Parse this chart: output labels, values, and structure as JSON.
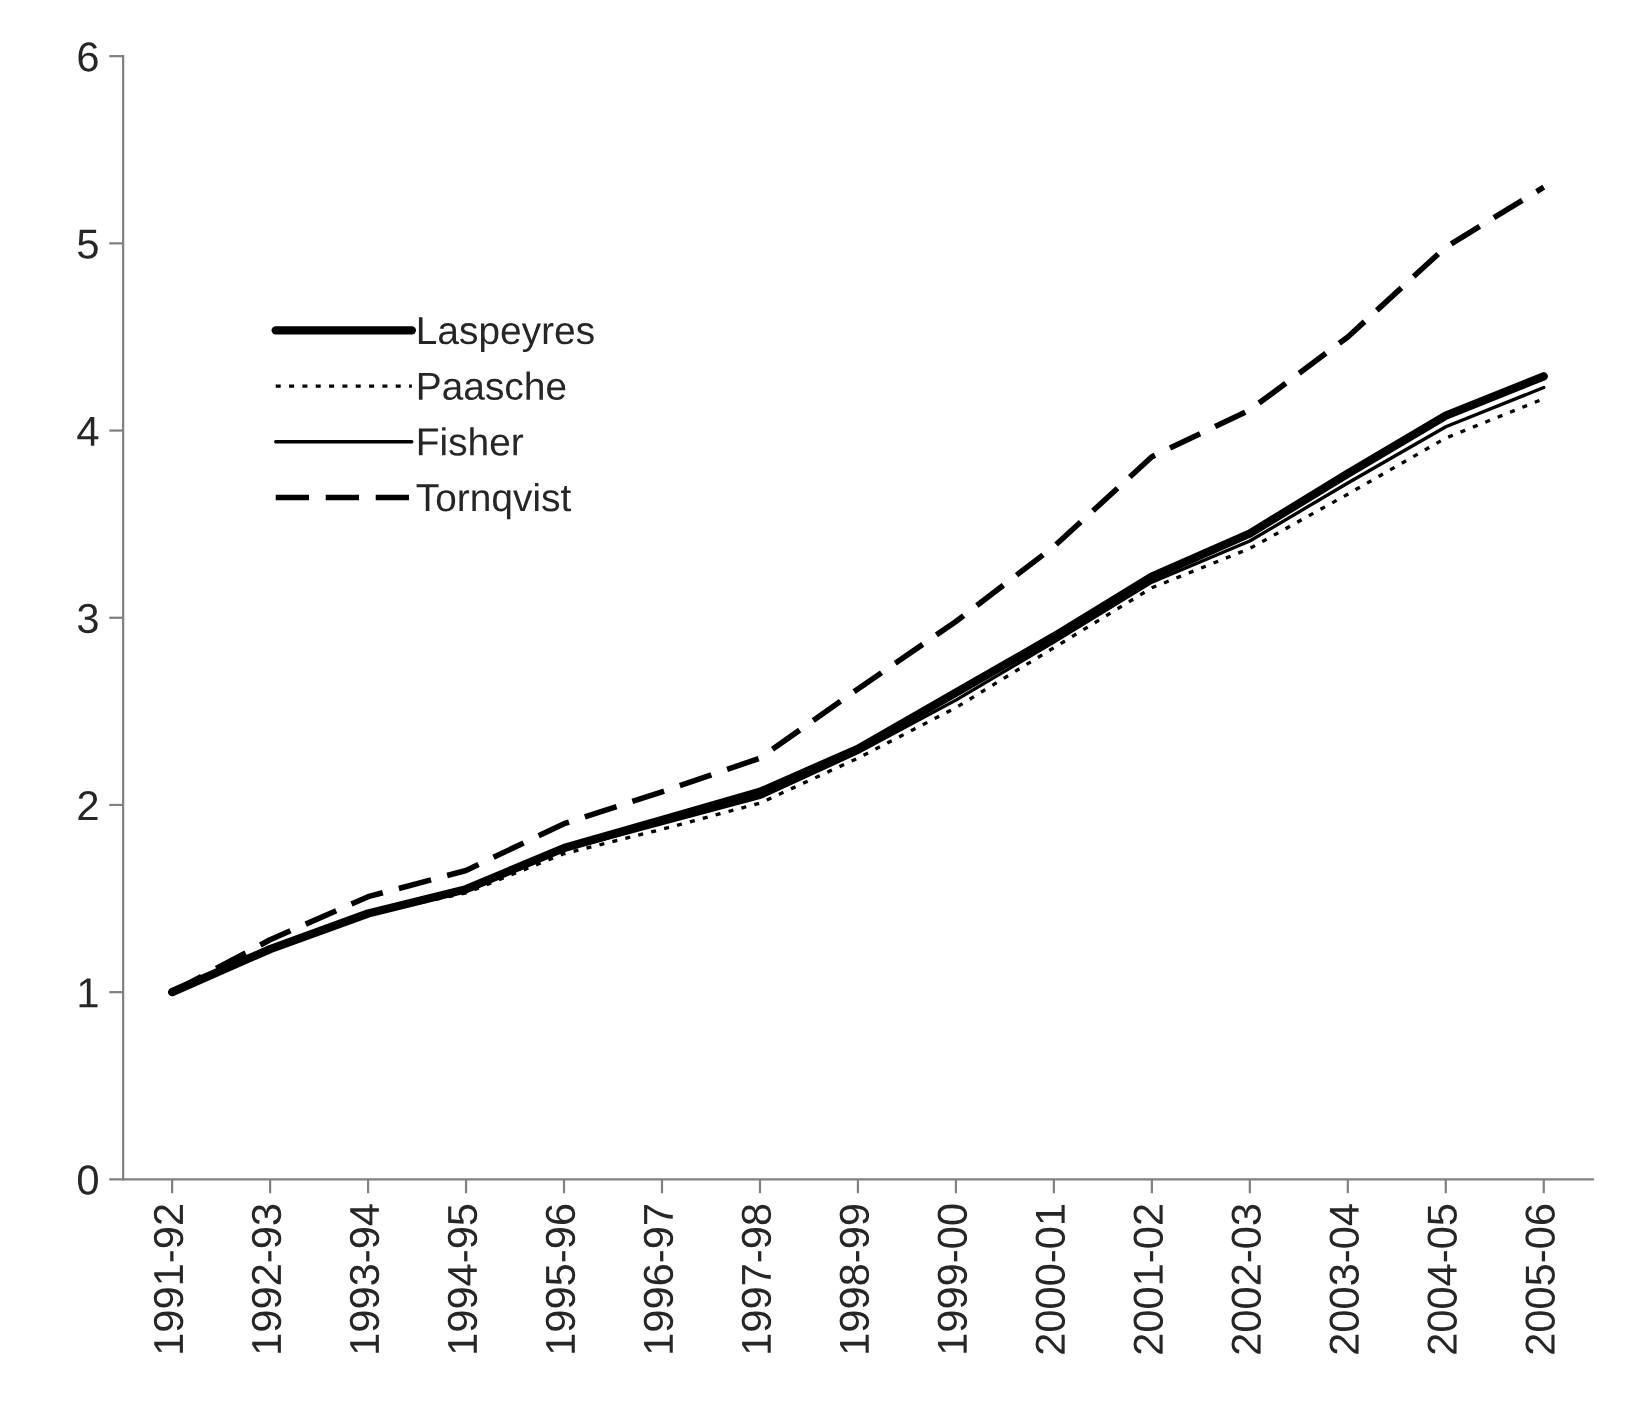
{
  "chart_data": {
    "type": "line",
    "categories": [
      "1991-92",
      "1992-93",
      "1993-94",
      "1994-95",
      "1995-96",
      "1996-97",
      "1997-98",
      "1998-99",
      "1999-00",
      "2000-01",
      "2001-02",
      "2002-03",
      "2003-04",
      "2004-05",
      "2005-06"
    ],
    "series": [
      {
        "name": "Laspeyres",
        "color": "#000000",
        "line_style": "solid",
        "values": [
          1.0,
          1.23,
          1.42,
          1.55,
          1.77,
          1.92,
          2.07,
          2.3,
          2.6,
          2.9,
          3.22,
          3.45,
          3.77,
          4.08,
          4.29
        ]
      },
      {
        "name": "Paasche",
        "color": "#000000",
        "line_style": "dotted",
        "values": [
          1.0,
          1.22,
          1.42,
          1.53,
          1.74,
          1.87,
          2.01,
          2.25,
          2.52,
          2.84,
          3.16,
          3.37,
          3.66,
          3.96,
          4.17
        ]
      },
      {
        "name": "Fisher",
        "color": "#000000",
        "line_style": "solid",
        "values": [
          1.0,
          1.22,
          1.42,
          1.54,
          1.76,
          1.9,
          2.04,
          2.28,
          2.56,
          2.87,
          3.19,
          3.41,
          3.72,
          4.02,
          4.23
        ]
      },
      {
        "name": "Tornqvist",
        "color": "#000000",
        "line_style": "dashed",
        "values": [
          1.0,
          1.28,
          1.51,
          1.65,
          1.9,
          2.07,
          2.25,
          2.62,
          2.98,
          3.38,
          3.86,
          4.11,
          4.5,
          4.98,
          5.3
        ]
      }
    ],
    "ylim": [
      0,
      6
    ],
    "yticks": [
      0,
      1,
      2,
      3,
      4,
      5,
      6
    ],
    "grid": false,
    "legend": "top left"
  }
}
